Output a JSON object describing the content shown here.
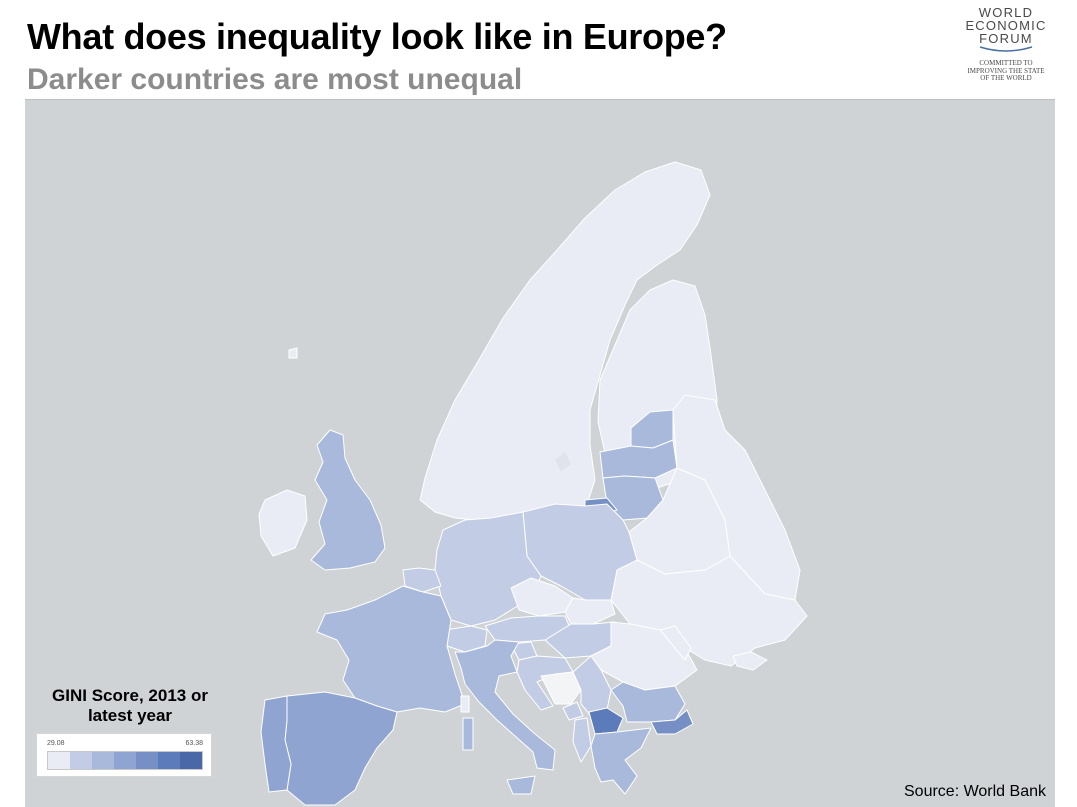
{
  "header": {
    "title": "What does inequality look like in Europe?",
    "subtitle": "Darker countries are most unequal"
  },
  "logo": {
    "wordmark_lines": [
      "WORLD",
      "ECONOMIC",
      "FORUM"
    ],
    "tagline_lines": [
      "COMMITTED TO",
      "IMPROVING THE STATE",
      "OF THE WORLD"
    ]
  },
  "legend": {
    "title_line1": "GINI Score, 2013 or",
    "title_line2": "latest year",
    "min_label": "29.08",
    "max_label": "63.38",
    "colors": [
      "#e9ecf5",
      "#c2cde5",
      "#a9b9dc",
      "#8fa4d1",
      "#7690c6",
      "#5c7bba",
      "#4a67a7"
    ]
  },
  "colors": {
    "sea": "#cfd3d6",
    "no_data": "#f3f4f6",
    "border": "#ffffff",
    "scale": [
      "#e9ecf5",
      "#c2cde5",
      "#a9b9dc",
      "#8fa4d1",
      "#7690c6",
      "#5c7bba",
      "#4a67a7"
    ]
  },
  "source": "Source: World Bank"
}
